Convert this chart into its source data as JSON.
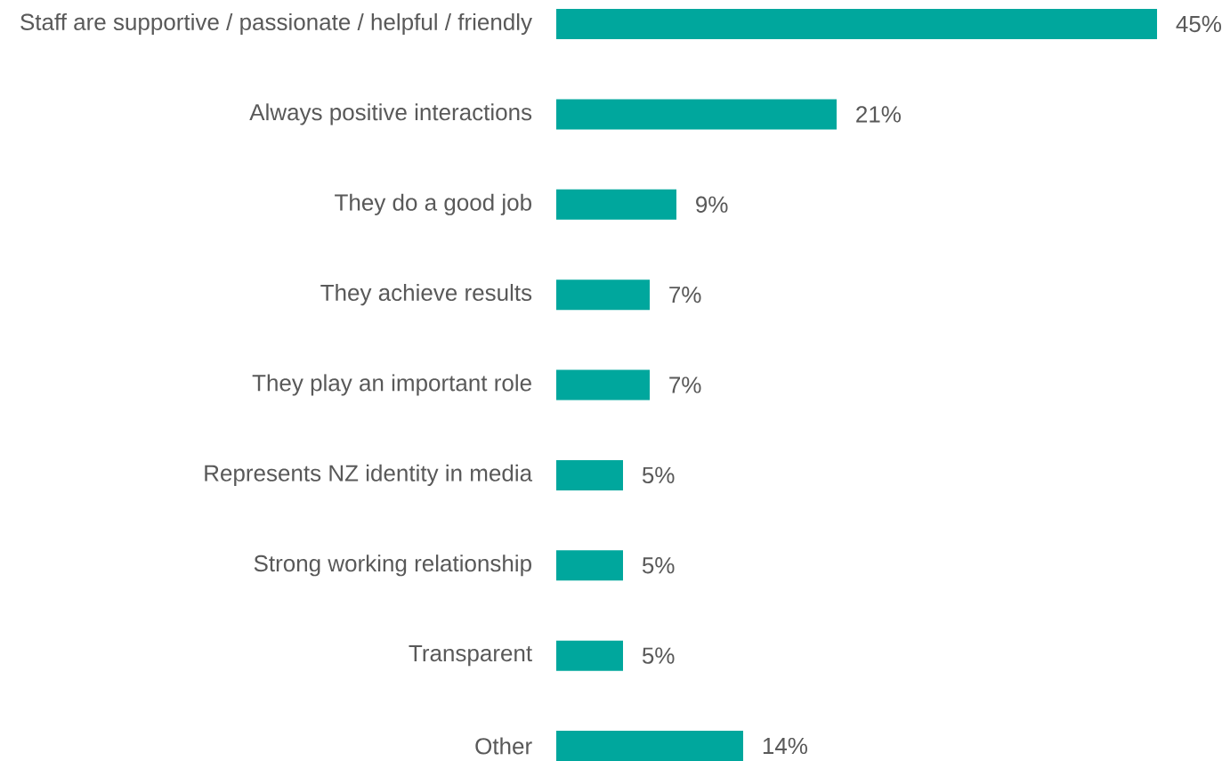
{
  "chart_data": {
    "type": "bar",
    "orientation": "horizontal",
    "categories": [
      "Staff are supportive / passionate / helpful / friendly",
      "Always positive interactions",
      "They do a good job",
      "They achieve results",
      "They play an important role",
      "Represents NZ identity in media",
      "Strong working relationship",
      "Transparent",
      "Other"
    ],
    "values": [
      45,
      21,
      9,
      7,
      7,
      5,
      5,
      5,
      14
    ],
    "value_labels": [
      "45%",
      "21%",
      "9%",
      "7%",
      "7%",
      "5%",
      "5%",
      "5%",
      "14%"
    ],
    "color": "#00a79d",
    "grid": false
  }
}
